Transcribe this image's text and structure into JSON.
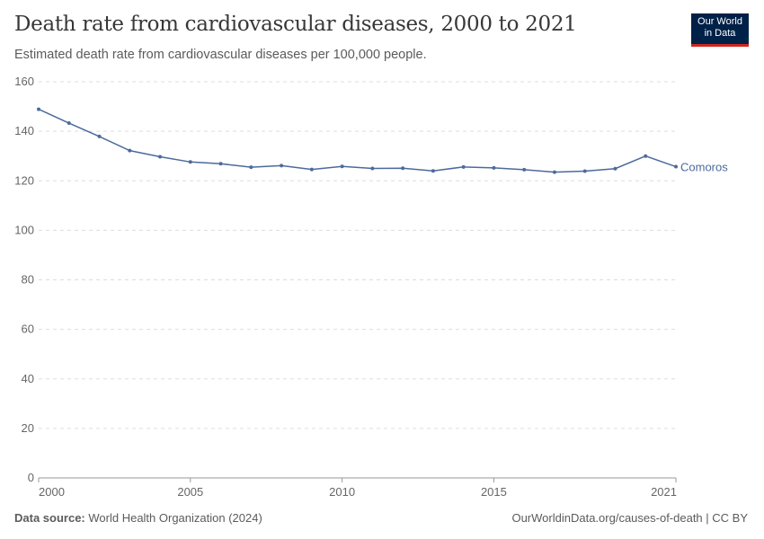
{
  "title": "Death rate from cardiovascular diseases, 2000 to 2021",
  "subtitle": "Estimated death rate from cardiovascular diseases per 100,000 people.",
  "logo": {
    "line1": "Our World",
    "line2": "in Data"
  },
  "footer": {
    "source_label": "Data source:",
    "source": "World Health Organization (2024)",
    "link": "OurWorldinData.org/causes-of-death | CC BY"
  },
  "chart_data": {
    "type": "line",
    "x": [
      2000,
      2001,
      2002,
      2003,
      2004,
      2005,
      2006,
      2007,
      2008,
      2009,
      2010,
      2011,
      2012,
      2013,
      2014,
      2015,
      2016,
      2017,
      2018,
      2019,
      2020,
      2021
    ],
    "series": [
      {
        "name": "Comoros",
        "color": "#4c6a9c",
        "values": [
          148.9,
          143.3,
          137.9,
          132.2,
          129.7,
          127.6,
          126.9,
          125.5,
          126.1,
          124.6,
          125.8,
          125.0,
          125.1,
          124.0,
          125.6,
          125.2,
          124.5,
          123.5,
          123.9,
          124.9,
          130.0,
          125.7
        ]
      }
    ],
    "xlim": [
      2000,
      2021
    ],
    "ylim": [
      0,
      160
    ],
    "x_ticks": [
      "2000",
      "2005",
      "2010",
      "2015",
      "2021"
    ],
    "y_ticks": [
      "0",
      "20",
      "40",
      "60",
      "80",
      "100",
      "120",
      "140",
      "160"
    ],
    "grid": "horizontal dashed",
    "legend": "inline-right"
  }
}
